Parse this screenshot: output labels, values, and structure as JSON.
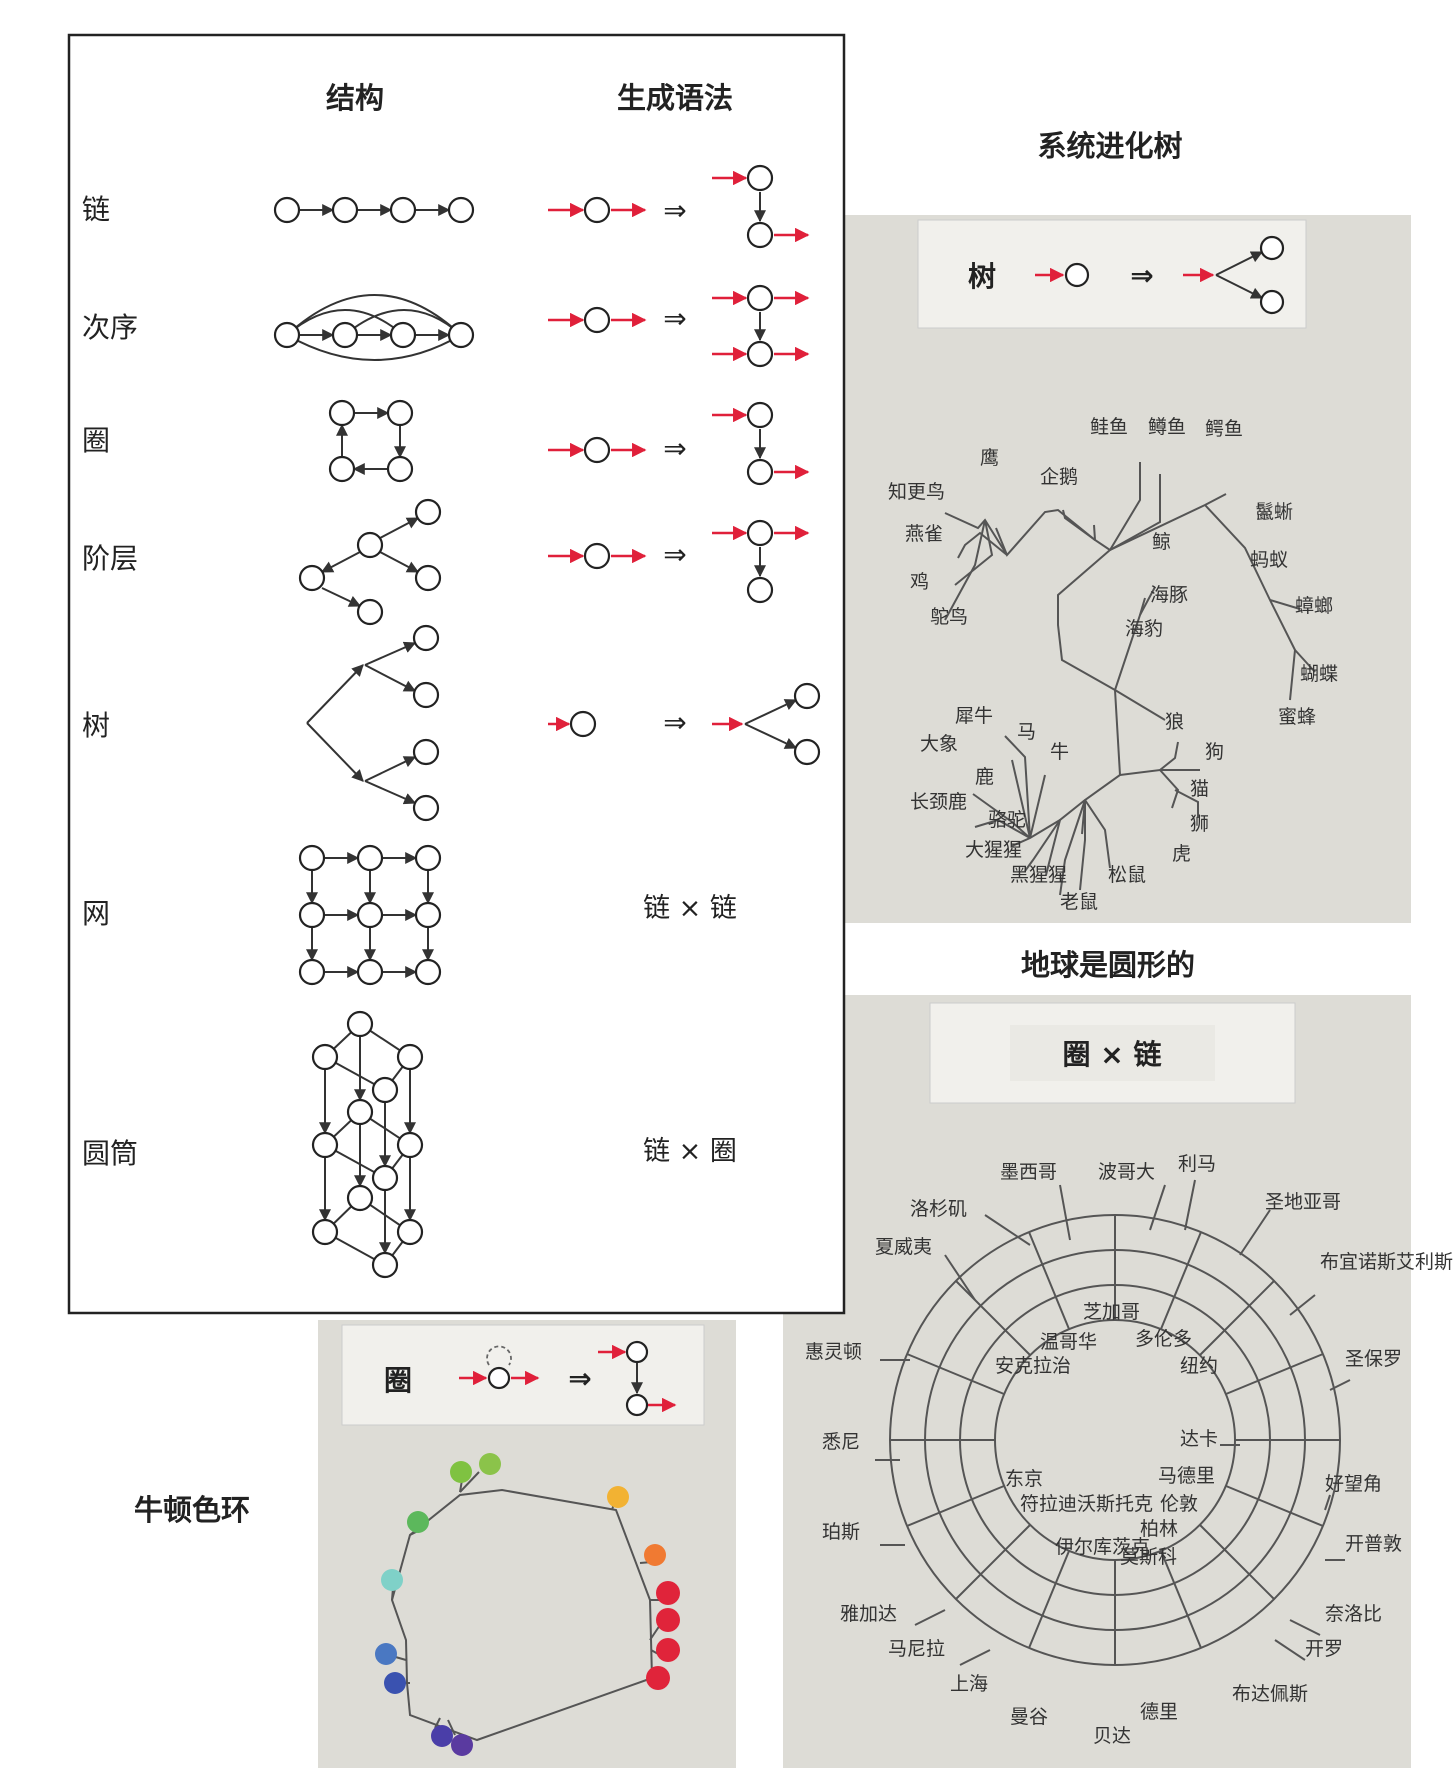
{
  "structure_table": {
    "col_structure": "结构",
    "col_grammar": "生成语法",
    "rows": [
      {
        "label": "链"
      },
      {
        "label": "次序"
      },
      {
        "label": "圈"
      },
      {
        "label": "阶层"
      },
      {
        "label": "树"
      },
      {
        "label": "网",
        "grammar_text": "链 × 链"
      },
      {
        "label": "圆筒",
        "grammar_text": "链 × 圈"
      }
    ],
    "arrow_symbol": "⇒"
  },
  "phylo_tree": {
    "title": "系统进化树",
    "rule_label": "树",
    "species": [
      "鲑鱼",
      "鳟鱼",
      "鳄鱼",
      "鹰",
      "企鹅",
      "知更鸟",
      "燕雀",
      "鸡",
      "鸵鸟",
      "鲸",
      "海豚",
      "海豹",
      "鬣蜥",
      "蚂蚁",
      "蟑螂",
      "蝴蝶",
      "蜜蜂",
      "犀牛",
      "马",
      "大象",
      "牛",
      "鹿",
      "长颈鹿",
      "骆驼",
      "大猩猩",
      "黑猩猩",
      "松鼠",
      "老鼠",
      "狼",
      "狗",
      "猫",
      "狮",
      "虎"
    ]
  },
  "earth_round": {
    "title": "地球是圆形的",
    "rule_label": "圈 × 链",
    "cities": [
      "墨西哥",
      "波哥大",
      "利马",
      "洛杉矶",
      "圣地亚哥",
      "夏威夷",
      "布宜诺斯艾利斯",
      "芝加哥",
      "温哥华",
      "多伦多",
      "安克拉治",
      "纽约",
      "惠灵顿",
      "圣保罗",
      "悉尼",
      "达卡",
      "东京",
      "马德里",
      "好望角",
      "符拉迪沃斯托克",
      "伦敦",
      "珀斯",
      "柏林",
      "开普敦",
      "伊尔库茨克",
      "莫斯科",
      "雅加达",
      "奈洛比",
      "马尼拉",
      "开罗",
      "上海",
      "布达佩斯",
      "曼谷",
      "德里",
      "贝达"
    ]
  },
  "color_wheel": {
    "title": "牛顿色环",
    "rule_label": "圈",
    "colors": [
      "#7fc241",
      "#8bc34a",
      "#5cb85c",
      "#7fd1c8",
      "#4a78c2",
      "#3a52b0",
      "#4a3ea8",
      "#5a3aa0",
      "#f2b233",
      "#f07a32",
      "#e0243a",
      "#e0243a",
      "#e0243a",
      "#e0243a"
    ]
  }
}
